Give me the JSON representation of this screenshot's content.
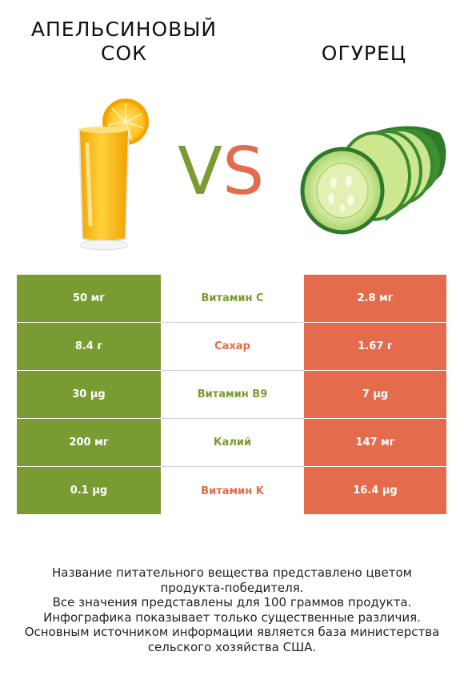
{
  "left_product": {
    "title_line1": "АПЕЛЬСИНОВЫЙ",
    "title_line2": "СОК"
  },
  "right_product": {
    "title": "ОГУРЕЦ"
  },
  "vs": {
    "v": "V",
    "s": "S"
  },
  "colors": {
    "left": "#7a9b31",
    "right": "#e46b4c"
  },
  "rows": [
    {
      "left": "50 мг",
      "nutrient": "Витамин C",
      "winner": "left",
      "right": "2.8 мг"
    },
    {
      "left": "8.4 г",
      "nutrient": "Сахар",
      "winner": "right",
      "right": "1.67 г"
    },
    {
      "left": "30 µg",
      "nutrient": "Витамин B9",
      "winner": "left",
      "right": "7 µg"
    },
    {
      "left": "200 мг",
      "nutrient": "Калий",
      "winner": "left",
      "right": "147 мг"
    },
    {
      "left": "0.1 µg",
      "nutrient": "Витамин K",
      "winner": "right",
      "right": "16.4 µg"
    }
  ],
  "footer": {
    "line1": "Название питательного вещества представлено цветом",
    "line2": "продукта-победителя.",
    "line3": "Все значения представлены для 100 граммов продукта.",
    "line4": "Инфографика показывает только существенные различия.",
    "line5": "Основным источником информации является база министерства",
    "line6": "сельского хозяйства США."
  }
}
